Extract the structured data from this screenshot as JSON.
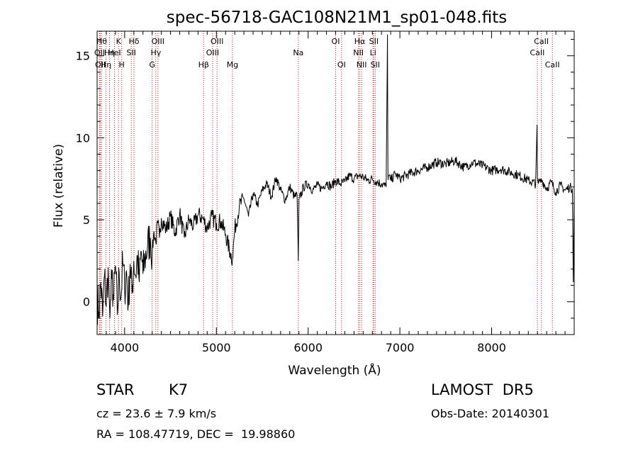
{
  "chart_data": {
    "type": "line",
    "title": "spec-56718-GAC108N21M1_sp01-048.fits",
    "xlabel": "Wavelength (Å)",
    "ylabel": "Flux (relative)",
    "xlim": [
      3700,
      8900
    ],
    "ylim": [
      -2,
      16.5
    ],
    "xticks": [
      4000,
      5000,
      6000,
      7000,
      8000
    ],
    "xtick_labels": [
      "4000",
      "5000",
      "6000",
      "7000",
      "8000"
    ],
    "yticks": [
      0,
      5,
      10,
      15
    ],
    "ytick_labels": [
      "0",
      "5",
      "10",
      "15"
    ],
    "grid": false,
    "colors": {
      "spectrum": "#000000",
      "lines": "#b22222",
      "axes": "#000000"
    },
    "series": [
      {
        "x": [
          3700,
          3720,
          3740,
          3760,
          3780,
          3800,
          3820,
          3840,
          3860,
          3880,
          3900,
          3920,
          3940,
          3960,
          3980,
          4000,
          4020,
          4040,
          4060,
          4080,
          4100,
          4120,
          4140,
          4160,
          4180,
          4200,
          4220,
          4250,
          4280,
          4300,
          4320,
          4340,
          4360,
          4380,
          4400,
          4450,
          4500,
          4550,
          4600,
          4650,
          4700,
          4750,
          4800,
          4850,
          4900,
          4950,
          5000,
          5050,
          5100,
          5150,
          5175,
          5200,
          5250,
          5300,
          5350,
          5400,
          5450,
          5500,
          5550,
          5600,
          5650,
          5700,
          5750,
          5800,
          5850,
          5880,
          5893,
          5900,
          5950,
          6000,
          6050,
          6100,
          6150,
          6200,
          6250,
          6300,
          6350,
          6400,
          6450,
          6500,
          6550,
          6600,
          6650,
          6700,
          6750,
          6800,
          6850,
          6865,
          6870,
          6875,
          6900,
          6950,
          7000,
          7100,
          7200,
          7300,
          7400,
          7500,
          7600,
          7700,
          7800,
          7900,
          8000,
          8100,
          8200,
          8300,
          8400,
          8480,
          8495,
          8500,
          8510,
          8550,
          8600,
          8650,
          8700,
          8750,
          8800,
          8850,
          8880,
          8890,
          8900
        ],
        "y": [
          0.2,
          -0.6,
          1.2,
          -0.9,
          1.6,
          -0.3,
          2.1,
          -1.0,
          1.4,
          0.1,
          2.2,
          -0.8,
          1.8,
          0.3,
          2.4,
          0.8,
          1.9,
          -0.2,
          2.3,
          0.5,
          2.5,
          1.6,
          2.8,
          1.2,
          3.1,
          1.7,
          2.6,
          3.4,
          3.9,
          2.9,
          4.3,
          3.6,
          4.8,
          3.9,
          5.1,
          4.4,
          5.2,
          4.2,
          5.4,
          3.9,
          5.0,
          4.6,
          5.3,
          5.1,
          4.5,
          5.2,
          4.8,
          4.9,
          4.1,
          3.0,
          2.6,
          4.4,
          5.8,
          6.3,
          5.2,
          6.6,
          5.9,
          6.8,
          7.2,
          6.4,
          7.6,
          6.8,
          6.2,
          7.0,
          6.4,
          6.5,
          2.5,
          6.2,
          7.0,
          7.2,
          6.8,
          7.1,
          6.9,
          7.3,
          7.0,
          7.4,
          7.2,
          7.3,
          7.7,
          7.5,
          7.7,
          7.6,
          7.4,
          7.5,
          7.3,
          7.2,
          7.0,
          16.3,
          7.6,
          7.7,
          7.4,
          7.8,
          7.5,
          7.8,
          8.0,
          8.2,
          8.5,
          8.4,
          8.6,
          8.2,
          8.5,
          8.3,
          8.0,
          8.1,
          7.9,
          7.7,
          7.4,
          7.2,
          10.8,
          7.6,
          7.2,
          7.4,
          6.9,
          7.3,
          6.7,
          7.1,
          6.8,
          7.0,
          6.9,
          1.2,
          6.8
        ]
      }
    ],
    "lines": [
      {
        "x": 3750,
        "label": "Hθ",
        "row": 0
      },
      {
        "x": 3727,
        "label": "OII",
        "row": 1
      },
      {
        "x": 3735,
        "label": "OII",
        "row": 2
      },
      {
        "x": 3797,
        "label": "Hη",
        "row": 2
      },
      {
        "x": 3835,
        "label": "Hη",
        "row": 1
      },
      {
        "x": 3889,
        "label": "HeI",
        "row": 1
      },
      {
        "x": 3934,
        "label": "K",
        "row": 0
      },
      {
        "x": 3968,
        "label": "H",
        "row": 2
      },
      {
        "x": 4072,
        "label": "SII",
        "row": 1
      },
      {
        "x": 4102,
        "label": "Hδ",
        "row": 0
      },
      {
        "x": 4300,
        "label": "G",
        "row": 2
      },
      {
        "x": 4340,
        "label": "Hγ",
        "row": 1
      },
      {
        "x": 4363,
        "label": "OIII",
        "row": 0
      },
      {
        "x": 4861,
        "label": "Hβ",
        "row": 2
      },
      {
        "x": 4959,
        "label": "OIII",
        "row": 1
      },
      {
        "x": 5007,
        "label": "OIII",
        "row": 0
      },
      {
        "x": 5175,
        "label": "Mg",
        "row": 2
      },
      {
        "x": 5893,
        "label": "Na",
        "row": 1
      },
      {
        "x": 6300,
        "label": "OI",
        "row": 0
      },
      {
        "x": 6364,
        "label": "OI",
        "row": 2
      },
      {
        "x": 6548,
        "label": "NII",
        "row": 1
      },
      {
        "x": 6563,
        "label": "Hα",
        "row": 0
      },
      {
        "x": 6583,
        "label": "NII",
        "row": 2
      },
      {
        "x": 6707,
        "label": "Li",
        "row": 1
      },
      {
        "x": 6716,
        "label": "SII",
        "row": 0
      },
      {
        "x": 6731,
        "label": "SII",
        "row": 2
      },
      {
        "x": 8498,
        "label": "CaII",
        "row": 1
      },
      {
        "x": 8542,
        "label": "CaII",
        "row": 0
      },
      {
        "x": 8662,
        "label": "CaII",
        "row": 2
      }
    ]
  },
  "info": {
    "class": "STAR",
    "subclass": "K7",
    "cz": "cz = 23.6 ± 7.9 km/s",
    "coords": "RA = 108.47719, DEC =  19.98860",
    "survey": "LAMOST  DR5",
    "obs_date": "Obs-Date: 20140301"
  }
}
